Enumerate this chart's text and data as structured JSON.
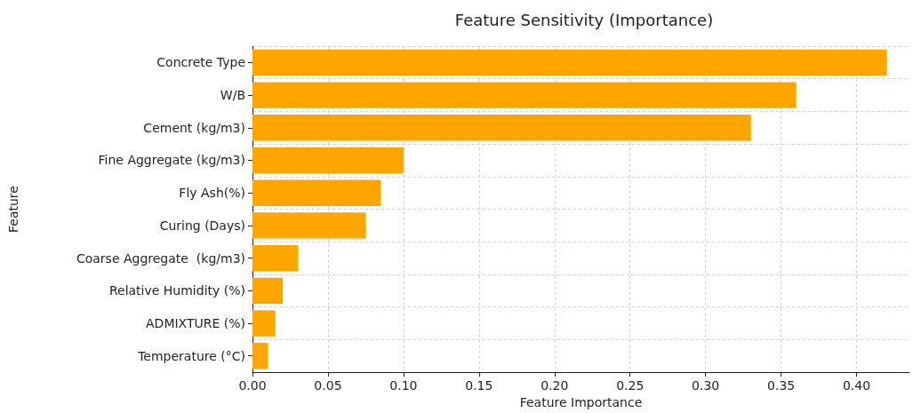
{
  "chart_data": {
    "type": "bar",
    "orientation": "horizontal",
    "title": "Feature Sensitivity (Importance)",
    "xlabel": "Feature Importance",
    "ylabel": "Feature",
    "categories": [
      "Concrete Type",
      "W/B",
      "Cement (kg/m3)",
      "Fine Aggregate (kg/m3)",
      "Fly Ash(%)",
      "Curing (Days)",
      "Coarse Aggregate  (kg/m3)",
      "Relative Humidity (%)",
      "ADMIXTURE (%)",
      "Temperature (°C)"
    ],
    "values": [
      0.42,
      0.36,
      0.33,
      0.1,
      0.085,
      0.075,
      0.03,
      0.02,
      0.015,
      0.01
    ],
    "color": "#ffa500",
    "xlim": [
      0,
      0.435
    ],
    "xticks": [
      {
        "value": 0,
        "label": "0.00"
      },
      {
        "value": 0.05,
        "label": "0.05"
      },
      {
        "value": 0.1,
        "label": "0.10"
      },
      {
        "value": 0.15,
        "label": "0.15"
      },
      {
        "value": 0.2,
        "label": "0.20"
      },
      {
        "value": 0.25,
        "label": "0.25"
      },
      {
        "value": 0.3,
        "label": "0.30"
      },
      {
        "value": 0.35,
        "label": "0.35"
      },
      {
        "value": 0.4,
        "label": "0.40"
      }
    ],
    "grid": true
  }
}
